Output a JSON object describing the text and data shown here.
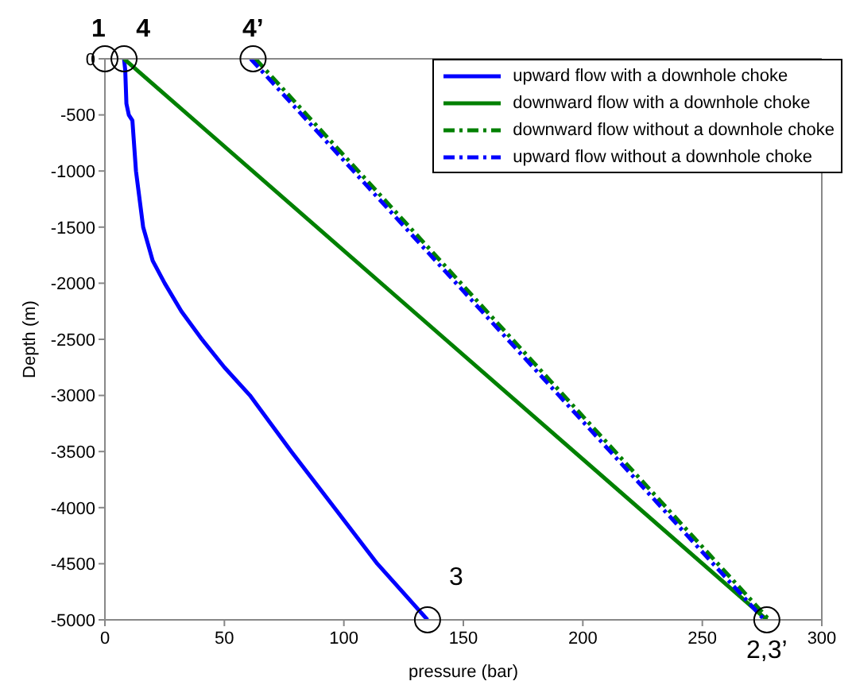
{
  "chart_data": {
    "type": "line",
    "xlabel": "pressure (bar)",
    "ylabel": "Depth (m)",
    "xlim": [
      0,
      300
    ],
    "xticks": [
      0,
      50,
      100,
      150,
      200,
      250,
      300
    ],
    "ylim": [
      -5000,
      0
    ],
    "yticks": [
      -5000,
      -4500,
      -4000,
      -3500,
      -3000,
      -2500,
      -2000,
      -1500,
      -1000,
      -500,
      0
    ],
    "grid": false,
    "legend": "top right",
    "series": [
      {
        "name": "upward flow  with a downhole choke",
        "color": "#0000ff",
        "line_style": "solid",
        "x": [
          8,
          8.5,
          9,
          10,
          11.5,
          12,
          13,
          16,
          20,
          25,
          32,
          40.6,
          50,
          60.7,
          78,
          96,
          114,
          135
        ],
        "values": [
          0,
          -100,
          -400,
          -500,
          -550,
          -700,
          -1000,
          -1500,
          -1800,
          -2000,
          -2250,
          -2500,
          -2750,
          -3000,
          -3500,
          -4000,
          -4500,
          -5000
        ]
      },
      {
        "name": "downward flow with a downhole choke",
        "color": "#008000",
        "line_style": "solid",
        "x": [
          8,
          277
        ],
        "values": [
          0,
          -5000
        ]
      },
      {
        "name": "downward flow without a downhole choke",
        "color": "#008000",
        "line_style": "dashed",
        "x": [
          63,
          278
        ],
        "values": [
          0,
          -5000
        ]
      },
      {
        "name": "upward flow without a downhole choke",
        "color": "#0000ff",
        "line_style": "dashed",
        "x": [
          61,
          276
        ],
        "values": [
          0,
          -5000
        ]
      }
    ],
    "annotations": [
      {
        "text": "1",
        "x": 0,
        "y": 0
      },
      {
        "text": "4",
        "x": 8,
        "y": 0
      },
      {
        "text": "4’",
        "x": 62,
        "y": 0
      },
      {
        "text": "3",
        "x": 135,
        "y": -5000
      },
      {
        "text": "2,3’",
        "x": 277,
        "y": -5000
      }
    ]
  }
}
